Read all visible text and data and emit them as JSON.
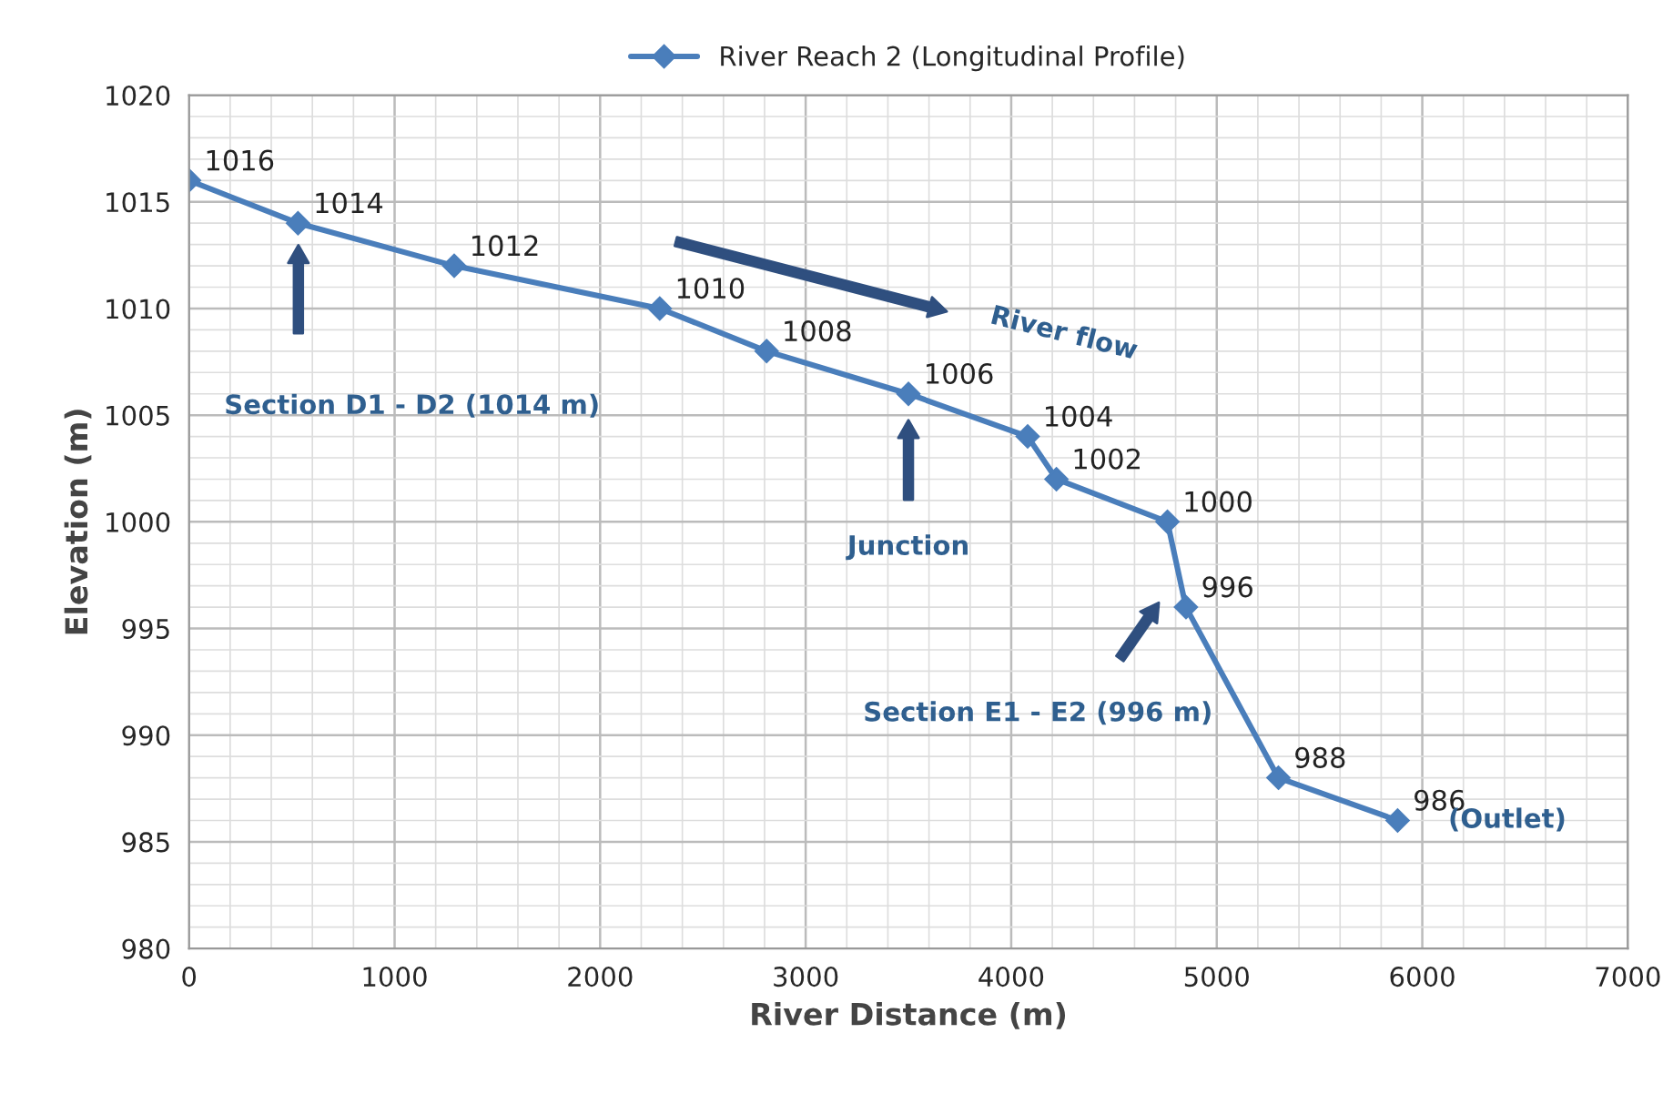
{
  "chart_data": {
    "type": "line",
    "xlabel": "River Distance (m)",
    "ylabel": "Elevation (m)",
    "x": [
      0,
      530,
      1290,
      2290,
      2810,
      3500,
      4080,
      4220,
      4760,
      4850,
      5300,
      5880
    ],
    "series": [
      {
        "name": "River Reach 2 (Longitudinal Profile)",
        "color": "#4a7ebb",
        "values": [
          1016,
          1014,
          1012,
          1010,
          1008,
          1006,
          1004,
          1002,
          1000,
          996,
          988,
          986
        ]
      }
    ],
    "data_labels": true,
    "xlim": [
      0,
      7000
    ],
    "xticks": [
      0,
      1000,
      2000,
      3000,
      4000,
      5000,
      6000,
      7000
    ],
    "ylim": [
      980,
      1020
    ],
    "yticks": [
      980,
      985,
      990,
      995,
      1000,
      1005,
      1010,
      1015,
      1020
    ],
    "grid": true,
    "legend": "top",
    "marker": "diamond",
    "line_style": "solid",
    "annotations": [
      "Section D1 - D2 (1014 m)",
      "River flow",
      "Junction",
      "Section E1 - E2 (996 m)",
      {
        "text": "(Outlet)",
        "x": 5880,
        "y": 986
      }
    ]
  }
}
